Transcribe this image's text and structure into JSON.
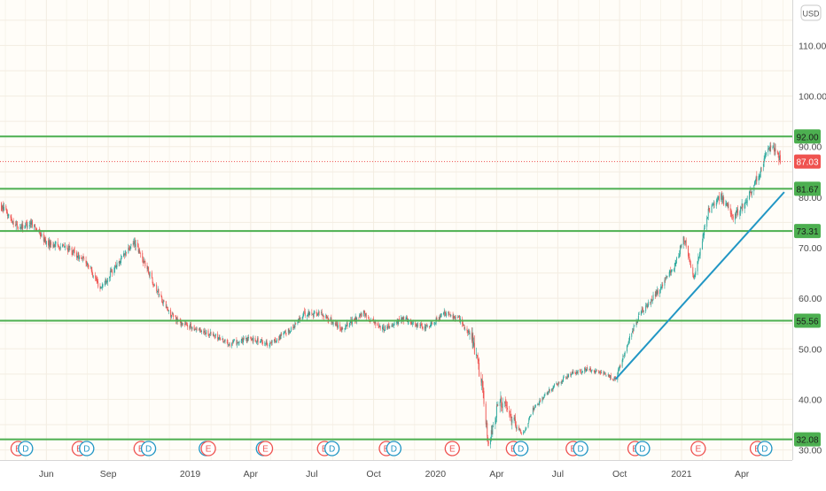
{
  "chart_data": {
    "type": "candlestick",
    "currency": "USD",
    "y_axis": {
      "range": [
        28,
        119
      ],
      "ticks": [
        30,
        40,
        50,
        60,
        70,
        80,
        90,
        100,
        110
      ],
      "tick_labels": [
        "30.00",
        "40.00",
        "50.00",
        "60.00",
        "70.00",
        "80.00",
        "90.00",
        "100.00",
        "110.00"
      ]
    },
    "x_axis": {
      "ticks": [
        {
          "label": "Jun",
          "date": "2018-06-01"
        },
        {
          "label": "Sep",
          "date": "2018-09-01"
        },
        {
          "label": "2019",
          "date": "2019-01-01"
        },
        {
          "label": "Apr",
          "date": "2019-04-01"
        },
        {
          "label": "Jul",
          "date": "2019-07-01"
        },
        {
          "label": "Oct",
          "date": "2019-10-01"
        },
        {
          "label": "2020",
          "date": "2020-01-01"
        },
        {
          "label": "Apr",
          "date": "2020-04-01"
        },
        {
          "label": "Jul",
          "date": "2020-07-01"
        },
        {
          "label": "Oct",
          "date": "2020-10-01"
        },
        {
          "label": "2021",
          "date": "2021-01-01"
        },
        {
          "label": "Apr",
          "date": "2021-04-01"
        }
      ]
    },
    "price_path": [
      [
        "2018-03-20",
        79
      ],
      [
        "2018-04-20",
        74
      ],
      [
        "2018-05-10",
        75
      ],
      [
        "2018-06-01",
        71
      ],
      [
        "2018-07-01",
        70
      ],
      [
        "2018-08-01",
        67
      ],
      [
        "2018-08-20",
        62
      ],
      [
        "2018-09-10",
        66
      ],
      [
        "2018-10-10",
        71
      ],
      [
        "2018-10-25",
        67
      ],
      [
        "2018-11-15",
        61
      ],
      [
        "2018-12-01",
        57
      ],
      [
        "2018-12-20",
        55
      ],
      [
        "2019-01-10",
        54
      ],
      [
        "2019-02-01",
        53
      ],
      [
        "2019-03-01",
        51
      ],
      [
        "2019-04-01",
        52
      ],
      [
        "2019-05-01",
        51
      ],
      [
        "2019-06-01",
        54
      ],
      [
        "2019-06-20",
        57
      ],
      [
        "2019-07-15",
        57
      ],
      [
        "2019-08-15",
        54
      ],
      [
        "2019-09-15",
        57
      ],
      [
        "2019-10-15",
        54
      ],
      [
        "2019-11-15",
        56
      ],
      [
        "2019-12-15",
        54
      ],
      [
        "2020-01-15",
        57
      ],
      [
        "2020-02-05",
        56
      ],
      [
        "2020-02-25",
        52
      ],
      [
        "2020-03-10",
        43
      ],
      [
        "2020-03-20",
        31
      ],
      [
        "2020-04-05",
        40
      ],
      [
        "2020-04-25",
        36
      ],
      [
        "2020-05-10",
        33
      ],
      [
        "2020-05-25",
        38
      ],
      [
        "2020-06-20",
        42
      ],
      [
        "2020-07-20",
        45
      ],
      [
        "2020-08-15",
        46
      ],
      [
        "2020-09-25",
        44
      ],
      [
        "2020-10-15",
        52
      ],
      [
        "2020-11-01",
        57
      ],
      [
        "2020-12-01",
        62
      ],
      [
        "2020-12-20",
        66
      ],
      [
        "2021-01-05",
        72
      ],
      [
        "2021-01-20",
        64
      ],
      [
        "2021-02-10",
        77
      ],
      [
        "2021-03-01",
        80
      ],
      [
        "2021-03-20",
        76
      ],
      [
        "2021-04-10",
        80
      ],
      [
        "2021-05-01",
        86
      ],
      [
        "2021-05-15",
        91
      ],
      [
        "2021-05-28",
        87
      ]
    ],
    "horizontal_levels": [
      {
        "label": "92.00",
        "value": 92.0,
        "color": "#4caf50"
      },
      {
        "label": "81.67",
        "value": 81.67,
        "color": "#4caf50"
      },
      {
        "label": "73.31",
        "value": 73.31,
        "color": "#4caf50"
      },
      {
        "label": "55.56",
        "value": 55.56,
        "color": "#4caf50"
      },
      {
        "label": "32.08",
        "value": 32.08,
        "color": "#4caf50"
      }
    ],
    "current_price": {
      "label": "87.03",
      "value": 87.03,
      "color": "#ef5350"
    },
    "trendline": {
      "start": [
        "2020-09-25",
        44
      ],
      "end": [
        "2021-06-03",
        81
      ],
      "color": "#2196c4"
    },
    "event_markers": [
      {
        "label": "E",
        "date": "2018-04-20",
        "type": "earnings"
      },
      {
        "label": "D",
        "date": "2018-05-01",
        "type": "dividend"
      },
      {
        "label": "E",
        "date": "2018-07-20",
        "type": "earnings"
      },
      {
        "label": "D",
        "date": "2018-07-31",
        "type": "dividend"
      },
      {
        "label": "E",
        "date": "2018-10-20",
        "type": "earnings"
      },
      {
        "label": "D",
        "date": "2018-10-31",
        "type": "dividend"
      },
      {
        "label": "D",
        "date": "2019-01-25",
        "type": "dividend"
      },
      {
        "label": "E",
        "date": "2019-01-28",
        "type": "earnings"
      },
      {
        "label": "D",
        "date": "2019-04-20",
        "type": "dividend"
      },
      {
        "label": "E",
        "date": "2019-04-23",
        "type": "earnings"
      },
      {
        "label": "E",
        "date": "2019-07-20",
        "type": "earnings"
      },
      {
        "label": "D",
        "date": "2019-07-31",
        "type": "dividend"
      },
      {
        "label": "E",
        "date": "2019-10-20",
        "type": "earnings"
      },
      {
        "label": "D",
        "date": "2019-10-31",
        "type": "dividend"
      },
      {
        "label": "E",
        "date": "2020-01-26",
        "type": "earnings"
      },
      {
        "label": "E",
        "date": "2020-04-26",
        "type": "earnings"
      },
      {
        "label": "D",
        "date": "2020-05-07",
        "type": "dividend"
      },
      {
        "label": "E",
        "date": "2020-07-24",
        "type": "earnings"
      },
      {
        "label": "D",
        "date": "2020-08-04",
        "type": "dividend"
      },
      {
        "label": "E",
        "date": "2020-10-24",
        "type": "earnings"
      },
      {
        "label": "D",
        "date": "2020-11-04",
        "type": "dividend"
      },
      {
        "label": "E",
        "date": "2021-01-26",
        "type": "earnings"
      },
      {
        "label": "E",
        "date": "2021-04-24",
        "type": "earnings"
      },
      {
        "label": "D",
        "date": "2021-05-05",
        "type": "dividend"
      }
    ],
    "colors": {
      "up": "#26a69a",
      "down": "#ef5350",
      "background": "#fffdf8",
      "grid": "#f3ede2",
      "earnings": "#ef5350",
      "dividend": "#2196c4"
    },
    "grid": true
  }
}
